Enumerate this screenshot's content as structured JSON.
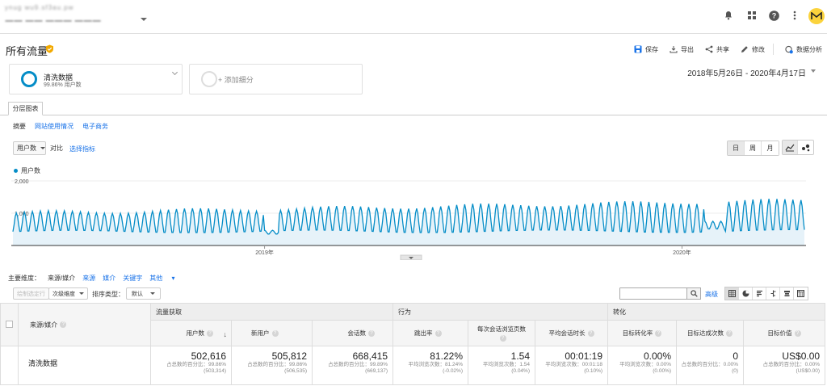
{
  "topbar": {
    "account_line1": "ynug wu9.sf3au.pw",
    "account_line2": "一一 一一 一一一 一一一"
  },
  "page": {
    "title": "所有流量"
  },
  "actions": {
    "save": "保存",
    "export": "导出",
    "share": "共享",
    "edit": "修改",
    "insights": "数据分析"
  },
  "segments": {
    "primary_name": "清洗数据",
    "primary_pct": "99.86% 用户数",
    "add_label": "+ 添加细分"
  },
  "date_range": "2018年5月26日 - 2020年4月17日",
  "tabs": {
    "explorer": "分层图表",
    "sub": [
      "摘要",
      "网站使用情况",
      "电子商务"
    ]
  },
  "metric_row": {
    "metric": "用户数",
    "vs": "对比",
    "pick": "选择指标",
    "gran_day": "日",
    "gran_week": "周",
    "gran_month": "月"
  },
  "chart_data": {
    "type": "area",
    "series": [
      {
        "name": "用户数",
        "color": "#058dc7"
      }
    ],
    "y_ticks": [
      "2,000",
      "1,000"
    ],
    "ylim": [
      0,
      2000
    ],
    "x_ticks": [
      "2019年",
      "2020年"
    ],
    "x_range": [
      "2018-05-26",
      "2020-04-17"
    ],
    "pattern": "weekly-cycle",
    "weekly_low": 400,
    "weekly_high_start": 1000,
    "weekly_high_end": 1400,
    "dip_2019_01": 350,
    "dip_2020_01": 500,
    "grid": true
  },
  "dimensions": {
    "label": "主要维度：",
    "items": [
      "来源/媒介",
      "来源",
      "媒介",
      "关键字",
      "其他"
    ]
  },
  "toolbar": {
    "plot_rows": "绘制选定行",
    "secondary": "次级维度",
    "sort_label": "排序类型：",
    "sort_value": "默认",
    "advanced": "高级"
  },
  "table": {
    "dim_header": "来源/媒介",
    "groups": [
      "流量获取",
      "行为",
      "转化"
    ],
    "columns": [
      "用户数",
      "新用户",
      "会话数",
      "跳出率",
      "每次会话浏览页数",
      "平均会话时长",
      "目标转化率",
      "目标达成次数",
      "目标价值"
    ],
    "total_label": "清洗数据",
    "totals": [
      {
        "value": "502,616",
        "sub1": "占总数的百分比：99.86%",
        "sub2": "(503,314)"
      },
      {
        "value": "505,812",
        "sub1": "占总数的百分比：99.86%",
        "sub2": "(506,535)"
      },
      {
        "value": "668,415",
        "sub1": "占总数的百分比：99.89%",
        "sub2": "(669,137)"
      },
      {
        "value": "81.22%",
        "sub1": "平均浏览次数：81.24%",
        "sub2": "(-0.02%)"
      },
      {
        "value": "1.54",
        "sub1": "平均浏览次数：1.54",
        "sub2": "(0.04%)"
      },
      {
        "value": "00:01:19",
        "sub1": "平均浏览次数：00:01:18",
        "sub2": "(0.10%)"
      },
      {
        "value": "0.00%",
        "sub1": "平均浏览次数：0.00%",
        "sub2": "(0.00%)"
      },
      {
        "value": "0",
        "sub1": "占总数的百分比：0.00%",
        "sub2": "(0)"
      },
      {
        "value": "US$0.00",
        "sub1": "占总数的百分比：0.00%",
        "sub2": "(US$0.00)"
      }
    ]
  }
}
